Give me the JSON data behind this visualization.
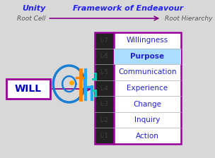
{
  "title_left": "Unity",
  "title_right": "Framework of Endeavour",
  "subtitle_left": "Root Cell",
  "subtitle_right": "Root Hierarchy",
  "will_label": "WILL",
  "levels": [
    "L-7",
    "L-6",
    "L-5",
    "L-4",
    "L-3",
    "L-2",
    "L-1"
  ],
  "items": [
    "Willingness",
    "Purpose",
    "Communication",
    "Experience",
    "Change",
    "Inquiry",
    "Action"
  ],
  "highlighted_item": "Purpose",
  "bg_color": "#d8d8d8",
  "box_bg": "#ffffff",
  "box_border": "#990099",
  "item_text_color": "#2222cc",
  "highlight_bg": "#aaddff",
  "title_color": "#2222ff",
  "arrow_color": "#880088",
  "will_text_color": "#0000bb",
  "level_text_color": "#444444",
  "grid_line_color": "#aaaaaa",
  "levels_bg": "#222222"
}
